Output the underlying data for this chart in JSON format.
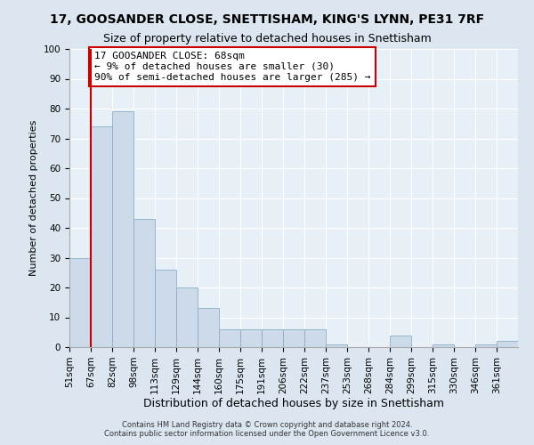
{
  "title": "17, GOOSANDER CLOSE, SNETTISHAM, KING'S LYNN, PE31 7RF",
  "subtitle": "Size of property relative to detached houses in Snettisham",
  "xlabel": "Distribution of detached houses by size in Snettisham",
  "ylabel": "Number of detached properties",
  "bin_labels": [
    "51sqm",
    "67sqm",
    "82sqm",
    "98sqm",
    "113sqm",
    "129sqm",
    "144sqm",
    "160sqm",
    "175sqm",
    "191sqm",
    "206sqm",
    "222sqm",
    "237sqm",
    "253sqm",
    "268sqm",
    "284sqm",
    "299sqm",
    "315sqm",
    "330sqm",
    "346sqm",
    "361sqm"
  ],
  "bar_values": [
    30,
    74,
    79,
    43,
    26,
    20,
    13,
    6,
    6,
    6,
    6,
    6,
    1,
    0,
    0,
    4,
    0,
    1,
    0,
    1,
    2
  ],
  "bar_color": "#ccdaea",
  "bar_edge_color": "#8aaec8",
  "vline_x": 1,
  "vline_color": "#cc0000",
  "annotation_box_text": "17 GOOSANDER CLOSE: 68sqm\n← 9% of detached houses are smaller (30)\n90% of semi-detached houses are larger (285) →",
  "annotation_box_color": "#cc0000",
  "ylim": [
    0,
    100
  ],
  "yticks": [
    0,
    10,
    20,
    30,
    40,
    50,
    60,
    70,
    80,
    90,
    100
  ],
  "footer_line1": "Contains HM Land Registry data © Crown copyright and database right 2024.",
  "footer_line2": "Contains public sector information licensed under the Open Government Licence v3.0.",
  "bg_color": "#dce6f0",
  "plot_bg_color": "#e8f0f7",
  "title_fontsize": 10,
  "subtitle_fontsize": 9,
  "xlabel_fontsize": 9,
  "ylabel_fontsize": 8,
  "tick_fontsize": 7.5,
  "annotation_fontsize": 8,
  "footer_fontsize": 6
}
